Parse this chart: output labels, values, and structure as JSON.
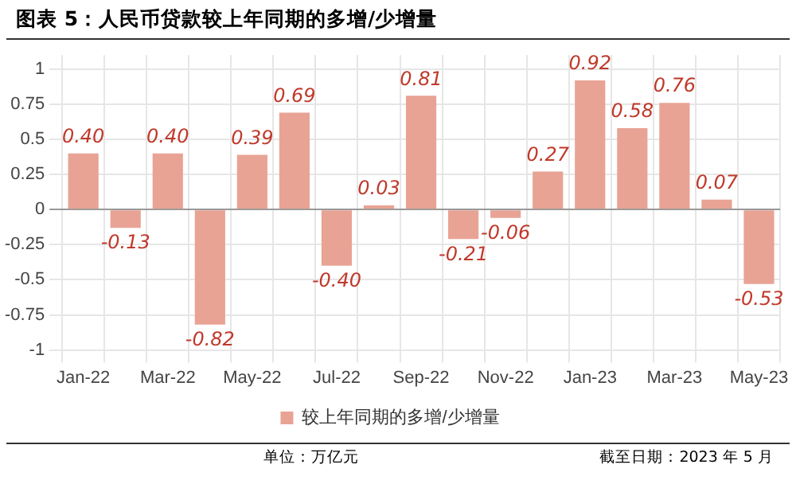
{
  "chart_data": {
    "type": "bar",
    "title": "图表 5：人民币贷款较上年同期的多增/少增量",
    "categories": [
      "Jan-22",
      null,
      "Mar-22",
      null,
      "May-22",
      null,
      "Jul-22",
      null,
      "Sep-22",
      null,
      "Nov-22",
      null,
      "Jan-23",
      null,
      "Mar-23",
      null,
      "May-23"
    ],
    "series": [
      {
        "name": "较上年同期的多增/少增量",
        "color": "#e8a394",
        "values": [
          0.4,
          -0.13,
          0.4,
          -0.82,
          0.39,
          0.69,
          -0.4,
          0.03,
          0.81,
          -0.21,
          -0.06,
          0.27,
          0.92,
          0.58,
          0.76,
          0.07,
          -0.53
        ]
      }
    ],
    "ylim": [
      -1,
      1.1
    ],
    "yticks": [
      -1,
      -0.75,
      -0.5,
      -0.25,
      0,
      0.25,
      0.5,
      0.75,
      1
    ],
    "grid": true,
    "legend": "bottom",
    "value_labels": [
      "0.40",
      "-0.13",
      "0.40",
      "-0.82",
      "0.39",
      "0.69",
      "-0.40",
      "0.03",
      "0.81",
      "-0.21",
      "-0.06",
      "0.27",
      "0.92",
      "0.58",
      "0.76",
      "0.07",
      "-0.53"
    ],
    "annotations": [
      "单位：万亿元",
      "截至日期：2023 年 5 月"
    ]
  }
}
